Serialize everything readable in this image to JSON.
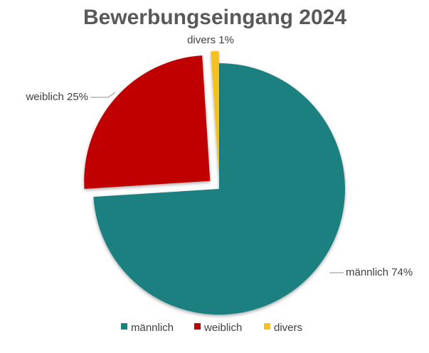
{
  "chart_data": {
    "type": "pie",
    "title": "Bewerbungseingang 2024",
    "categories": [
      "männlich",
      "weiblich",
      "divers"
    ],
    "values": [
      74,
      25,
      1
    ],
    "unit": "%",
    "data_labels": [
      "männlich 74%",
      "weiblich 25%",
      "divers 1%"
    ],
    "exploded": [
      "weiblich",
      "divers"
    ],
    "legend": {
      "position": "bottom",
      "entries": [
        "männlich",
        "weiblich",
        "divers"
      ]
    },
    "colors": [
      "#1a8080",
      "#c00000",
      "#f6c11e"
    ]
  }
}
